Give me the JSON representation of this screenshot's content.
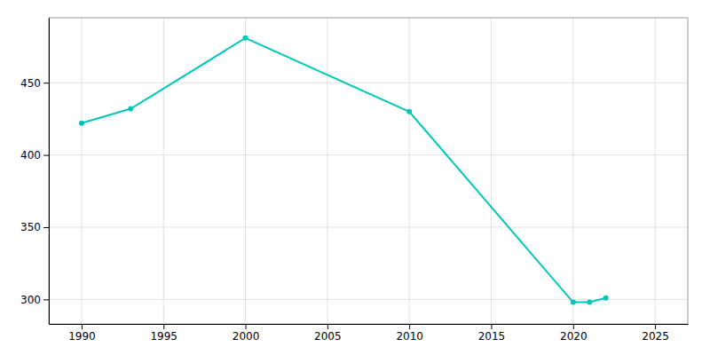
{
  "chart_data": {
    "type": "line",
    "x": [
      1990,
      1993,
      2000,
      2010,
      2020,
      2021,
      2022
    ],
    "values": [
      422,
      432,
      481,
      430,
      298,
      298,
      301
    ],
    "color": "#00c8b8",
    "marker": "circle",
    "xlim": [
      1988,
      2027
    ],
    "ylim": [
      283,
      495
    ],
    "xticks": [
      1990,
      1995,
      2000,
      2005,
      2010,
      2015,
      2020,
      2025
    ],
    "yticks": [
      300,
      350,
      400,
      450
    ],
    "grid": true
  }
}
